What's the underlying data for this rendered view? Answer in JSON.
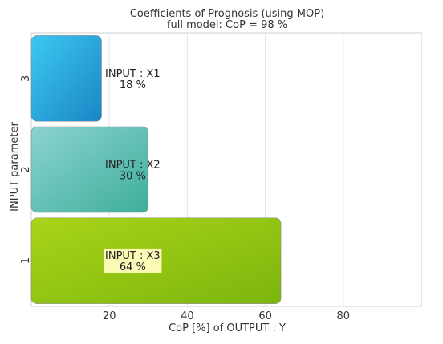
{
  "chart_data": {
    "type": "bar",
    "orientation": "horizontal",
    "title": "Coefficients of Prognosis (using MOP)",
    "subtitle": "full model: CoP = 98 %",
    "xlabel": "CoP [%] of OUTPUT : Y",
    "ylabel": "INPUT parameter",
    "xlim": [
      0,
      100
    ],
    "xticks": [
      20,
      40,
      60,
      80
    ],
    "grid": true,
    "categories": [
      "1",
      "2",
      "3"
    ],
    "values": [
      64,
      30,
      18
    ],
    "bar_labels": [
      {
        "name": "INPUT : X3",
        "value_text": "64 %",
        "highlight": true
      },
      {
        "name": "INPUT : X2",
        "value_text": "30 %",
        "highlight": false
      },
      {
        "name": "INPUT : X1",
        "value_text": "18 %",
        "highlight": false
      }
    ],
    "colors": [
      [
        "#a9d418",
        "#7cb60e"
      ],
      [
        "#8bd3d3",
        "#3fae9a"
      ],
      [
        "#3cc8f2",
        "#1a86c4"
      ]
    ],
    "highlight_color": "#fbfbb6"
  }
}
